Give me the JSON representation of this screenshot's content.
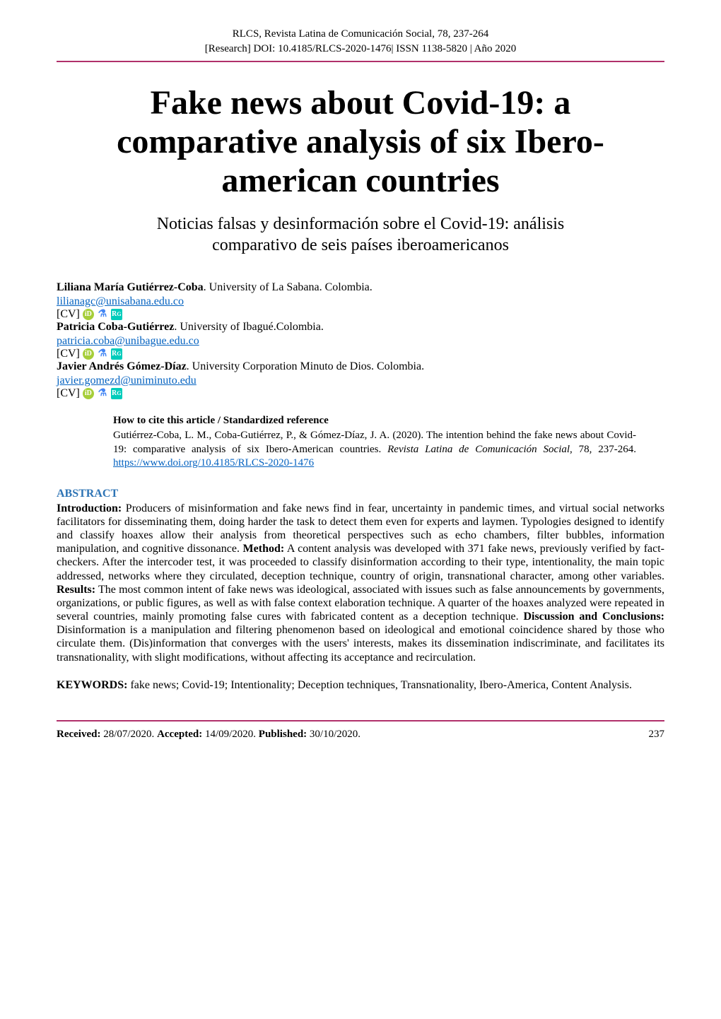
{
  "header": {
    "line1": "RLCS, Revista Latina de Comunicación Social, 78, 237-264",
    "line2": "[Research] DOI: 10.4185/RLCS-2020-1476| ISSN 1138-5820 | Año 2020"
  },
  "title": {
    "line1": "Fake news about Covid-19: a",
    "line2": "comparative analysis of six Ibero-",
    "line3": "american countries"
  },
  "subtitle": {
    "line1": "Noticias falsas y desinformación sobre el Covid-19: análisis",
    "line2": "comparativo de seis países iberoamericanos"
  },
  "authors": [
    {
      "name": "Liliana María Gutiérrez-Coba",
      "affiliation": ". University of La Sabana. Colombia.",
      "email": "lilianagc@unisabana.edu.co",
      "cv": "[CV]"
    },
    {
      "name": "Patricia Coba-Gutiérrez",
      "affiliation": ". University of Ibagué.Colombia.",
      "email": "patricia.coba@unibague.edu.co",
      "cv": "[CV]"
    },
    {
      "name": "Javier Andrés Gómez-Díaz",
      "affiliation": ". University Corporation Minuto de Dios. Colombia.",
      "email": "javier.gomezd@uniminuto.edu",
      "cv": "[CV]"
    }
  ],
  "cite": {
    "heading": "How to cite this article / Standardized reference",
    "text_prefix": "Gutiérrez-Coba, L. M., Coba-Gutiérrez, P., & Gómez-Díaz, J. A. (2020). The intention behind the fake news about Covid-19: comparative analysis of six Ibero-American countries. ",
    "text_italic": "Revista Latina de Comunicación Social",
    "text_suffix": ", 78, 237-264. ",
    "link": "https://www.doi.org/10.4185/RLCS-2020-1476"
  },
  "abstract": {
    "heading": "ABSTRACT",
    "intro_label": "Introduction:",
    "intro_text": " Producers of misinformation and fake news find in fear, uncertainty in pandemic times, and virtual social networks facilitators for disseminating them, doing harder the task to detect them even for experts and laymen. Typologies designed to identify and classify hoaxes allow their analysis from theoretical perspectives such as echo chambers, filter bubbles, information manipulation, and cognitive dissonance. ",
    "method_label": "Method:",
    "method_text": " A content analysis was developed with 371 fake news, previously verified by fact-checkers. After the intercoder test, it was proceeded to classify disinformation according to their type, intentionality, the main topic addressed, networks where they circulated, deception technique, country of origin, transnational character, among other variables. ",
    "results_label": "Results:",
    "results_text": " The most common intent of fake news was ideological, associated with issues such as false announcements by governments, organizations, or public figures, as well as with false context elaboration technique. A quarter of the hoaxes analyzed were repeated in several countries, mainly promoting false cures with fabricated content as a deception technique. ",
    "discussion_label": "Discussion and Conclusions:",
    "discussion_text": " Disinformation is a manipulation and filtering phenomenon based on ideological and emotional coincidence shared by those who circulate them. (Dis)information that converges with the users' interests, makes its dissemination indiscriminate, and facilitates its transnationality, with slight modifications, without affecting its acceptance and recirculation."
  },
  "keywords": {
    "label": "KEYWORDS:",
    "text": " fake news; Covid-19; Intentionality; Deception techniques, Transnationality, Ibero-America, Content Analysis."
  },
  "footer": {
    "received_label": "Received:",
    "received_date": " 28/07/2020. ",
    "accepted_label": "Accepted:",
    "accepted_date": " 14/09/2020. ",
    "published_label": "Published:",
    "published_date": " 30/10/2020.",
    "page": "237"
  },
  "colors": {
    "divider": "#b0306a",
    "link": "#0563c1",
    "heading": "#2e74b5",
    "orcid": "#a6ce39",
    "rg": "#00ccbb",
    "scholar": "#4285f4"
  }
}
